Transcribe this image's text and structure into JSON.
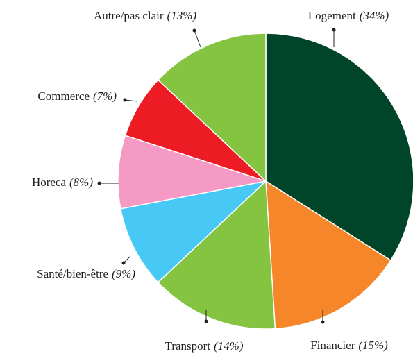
{
  "chart_data": {
    "type": "pie",
    "categories": [
      "Logement",
      "Financier",
      "Transport",
      "Santé/bien-être",
      "Horeca",
      "Commerce",
      "Autre/pas clair"
    ],
    "values": [
      34,
      15,
      14,
      9,
      8,
      7,
      13
    ],
    "value_labels": [
      "(34%)",
      "(15%)",
      "(14%)",
      "(9%)",
      "(8%)",
      "(7%)",
      "(13%)"
    ],
    "colors": [
      "#00442a",
      "#f5862a",
      "#84c441",
      "#47c8f5",
      "#f49ac5",
      "#ed1c24",
      "#84c441"
    ]
  }
}
